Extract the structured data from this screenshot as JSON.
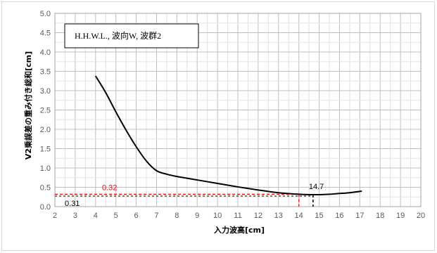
{
  "chart_data": {
    "type": "line",
    "legend_text": "H.H.W.L., 波向W, 波群2",
    "xlabel": "入力波高[cm]",
    "ylabel": "V2乗誤差の重み付き総和[cm]",
    "xlim": [
      2,
      20
    ],
    "ylim": [
      0,
      5
    ],
    "x_ticks": [
      "2",
      "3",
      "4",
      "5",
      "6",
      "7",
      "8",
      "9",
      "10",
      "11",
      "12",
      "13",
      "14",
      "15",
      "16",
      "17",
      "18",
      "19",
      "20"
    ],
    "y_ticks": [
      "0.0",
      "0.5",
      "1.0",
      "1.5",
      "2.0",
      "2.5",
      "3.0",
      "3.5",
      "4.0",
      "4.5",
      "5.0"
    ],
    "grid": true,
    "legend_position": "top-left",
    "series": [
      {
        "color": "#000000",
        "x": [
          4.0,
          4.5,
          5.0,
          5.5,
          6.0,
          6.5,
          7.0,
          7.5,
          8.0,
          9.0,
          10.0,
          11.0,
          12.0,
          13.0,
          14.0,
          14.5,
          15.0,
          15.5,
          16.0,
          16.5,
          17.1
        ],
        "y": [
          3.38,
          2.95,
          2.45,
          1.98,
          1.55,
          1.18,
          0.93,
          0.84,
          0.78,
          0.69,
          0.6,
          0.51,
          0.43,
          0.36,
          0.32,
          0.31,
          0.31,
          0.32,
          0.34,
          0.36,
          0.4
        ]
      }
    ],
    "annotations": [
      {
        "text": "0.32",
        "color": "#ff0000",
        "x": 14.0,
        "y": 0.32,
        "style": "dashed"
      },
      {
        "text": "14.7",
        "color": "#000000",
        "x": 14.7,
        "y": 0.31,
        "style": "dashed"
      },
      {
        "text": "0.31",
        "color": "#000000",
        "x": 14.7,
        "y": 0.31
      }
    ]
  }
}
